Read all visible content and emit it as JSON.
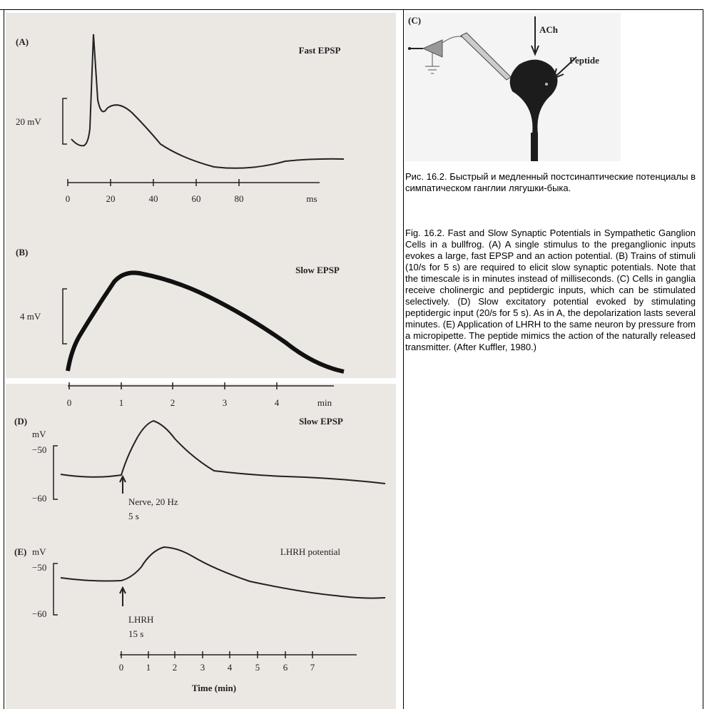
{
  "figure_left": {
    "panel_a": {
      "label": "(A)",
      "title": "Fast EPSP",
      "scale": "20 mV",
      "ticks": [
        "0",
        "20",
        "40",
        "60",
        "80",
        "ms"
      ]
    },
    "panel_b": {
      "label": "(B)",
      "title": "Slow EPSP",
      "scale": "4 mV",
      "ticks": [
        "0",
        "1",
        "2",
        "3",
        "4",
        "min"
      ]
    },
    "panel_d": {
      "label": "(D)",
      "unit": "mV",
      "levels": [
        "−50",
        "−60"
      ],
      "title": "Slow EPSP",
      "stimulus": [
        "Nerve, 20 Hz",
        "5 s"
      ]
    },
    "panel_e": {
      "label": "(E)",
      "unit": "mV",
      "levels": [
        "−50",
        "−60"
      ],
      "title": "LHRH potential",
      "stimulus": [
        "LHRH",
        "15 s"
      ],
      "ticks": [
        "0",
        "1",
        "2",
        "3",
        "4",
        "5",
        "6",
        "7"
      ],
      "axis_label": "Time (min)"
    }
  },
  "figure_right": {
    "label": "(C)",
    "inputs": [
      "ACh",
      "Peptide"
    ]
  },
  "caption": {
    "russian": "Рис. 16.2. Быстрый и медленный постсинаптические потенциалы в симпатическом ганглии лягушки-быка.",
    "english": "Fig. 16.2. Fast and Slow Synaptic Potentials in Sympathetic Ganglion Cells in a bullfrog. (A) A single stimulus to the preganglionic inputs evokes a large, fast EPSP and an action potential. (B) Trains of stimuli (10/s for 5 s) are required to elicit slow synaptic potentials. Note that the timescale is in minutes instead of milliseconds. (C) Cells in ganglia receive cholinergic and peptidergic inputs, which can be stimulated selectively. (D) Slow excitatory potential evoked by stimulating peptidergic input (20/s for 5 s). As in A, the depolarization lasts several minutes. (E) Application of LHRH to the same neuron by pressure from a micropipette. The peptide mimics the action of the naturally released transmitter. (After Kuffler, 1980.)"
  }
}
